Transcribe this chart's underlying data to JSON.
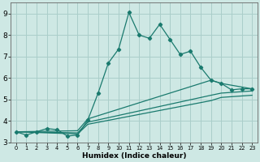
{
  "title": "",
  "xlabel": "Humidex (Indice chaleur)",
  "xlim": [
    -0.5,
    23.5
  ],
  "ylim": [
    3.0,
    9.5
  ],
  "xticks": [
    0,
    1,
    2,
    3,
    4,
    5,
    6,
    7,
    8,
    9,
    10,
    11,
    12,
    13,
    14,
    15,
    16,
    17,
    18,
    19,
    20,
    21,
    22,
    23
  ],
  "yticks": [
    3,
    4,
    5,
    6,
    7,
    8,
    9
  ],
  "background_color": "#cee8e4",
  "grid_color": "#aaceca",
  "line_color": "#1a7a6e",
  "line1_x": [
    0,
    1,
    2,
    3,
    4,
    5,
    6,
    7,
    8,
    9,
    10,
    11,
    12,
    13,
    14,
    15,
    16,
    17,
    18,
    19,
    20,
    21,
    22,
    23
  ],
  "line1_y": [
    3.5,
    3.35,
    3.5,
    3.65,
    3.6,
    3.3,
    3.35,
    4.05,
    5.3,
    6.7,
    7.35,
    9.05,
    8.0,
    7.85,
    8.5,
    7.8,
    7.1,
    7.25,
    6.5,
    5.9,
    5.75,
    5.45,
    5.5,
    5.5
  ],
  "line2_x": [
    0,
    6,
    7,
    19,
    20,
    23
  ],
  "line2_y": [
    3.5,
    3.55,
    4.1,
    5.9,
    5.75,
    5.5
  ],
  "line3_x": [
    0,
    6,
    7,
    19,
    20,
    23
  ],
  "line3_y": [
    3.5,
    3.45,
    3.95,
    5.2,
    5.3,
    5.4
  ],
  "line4_x": [
    0,
    6,
    7,
    19,
    20,
    23
  ],
  "line4_y": [
    3.5,
    3.4,
    3.85,
    4.95,
    5.1,
    5.2
  ]
}
